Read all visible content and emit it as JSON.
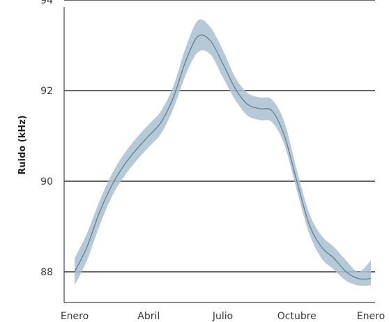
{
  "chart_data": {
    "type": "area",
    "title": "",
    "xlabel": "",
    "ylabel": "Ruido (kHz)",
    "ylim": [
      87.4,
      94.1
    ],
    "xlim": [
      0,
      12
    ],
    "grid": "horizontal",
    "x_ticks": [
      {
        "value": 0,
        "label": "Enero"
      },
      {
        "value": 3,
        "label": "Abril"
      },
      {
        "value": 6,
        "label": "Julio"
      },
      {
        "value": 9,
        "label": "Octubre"
      },
      {
        "value": 12,
        "label": "Enero"
      }
    ],
    "y_ticks": [
      {
        "value": 88,
        "label": "88"
      },
      {
        "value": 90,
        "label": "90"
      },
      {
        "value": 92,
        "label": "92"
      },
      {
        "value": 94,
        "label": "94"
      }
    ],
    "series": [
      {
        "color": "#5f7f97",
        "band_color": "#a9bfcf",
        "x": [
          0,
          0.5,
          1,
          1.5,
          2,
          2.5,
          3,
          3.5,
          4,
          4.5,
          5,
          5.5,
          6,
          6.5,
          7,
          7.5,
          8,
          8.5,
          9,
          9.5,
          10,
          10.5,
          11,
          11.5,
          12
        ],
        "y": [
          88.0,
          88.55,
          89.3,
          89.9,
          90.35,
          90.7,
          91.0,
          91.3,
          91.85,
          92.65,
          93.2,
          93.1,
          92.6,
          92.05,
          91.7,
          91.6,
          91.55,
          91.0,
          90.0,
          89.05,
          88.55,
          88.3,
          88.0,
          87.85,
          87.85
        ],
        "lower": [
          87.7,
          88.25,
          89.0,
          89.65,
          90.1,
          90.45,
          90.75,
          91.05,
          91.6,
          92.35,
          92.85,
          92.8,
          92.3,
          91.8,
          91.45,
          91.35,
          91.3,
          90.8,
          89.8,
          88.85,
          88.3,
          88.05,
          87.8,
          87.7,
          87.7
        ],
        "upper": [
          88.3,
          88.85,
          89.55,
          90.15,
          90.6,
          90.95,
          91.25,
          91.55,
          92.1,
          92.95,
          93.55,
          93.4,
          92.9,
          92.3,
          91.95,
          91.85,
          91.8,
          91.3,
          90.25,
          89.3,
          88.8,
          88.55,
          88.25,
          88.0,
          88.25
        ]
      }
    ]
  }
}
